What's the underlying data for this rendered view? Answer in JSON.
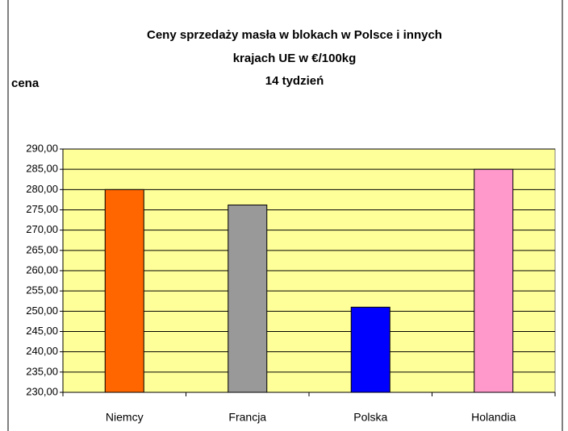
{
  "chart_data": {
    "type": "bar",
    "title": [
      "Ceny sprzedaży masła w blokach w Polsce i  innych",
      "krajach UE w €/100kg",
      "14 tydzień"
    ],
    "y_label": "cena",
    "categories": [
      "Niemcy",
      "Francja",
      "Polska",
      "Holandia"
    ],
    "values": [
      280,
      276.2,
      251,
      285
    ],
    "colors": [
      "#ff6600",
      "#999999",
      "#0000ff",
      "#ff99cc"
    ],
    "ylim": [
      230,
      290
    ],
    "yticks": [
      {
        "value": 230,
        "label": "230,00"
      },
      {
        "value": 235,
        "label": "235,00"
      },
      {
        "value": 240,
        "label": "240,00"
      },
      {
        "value": 245,
        "label": "245,00"
      },
      {
        "value": 250,
        "label": "250,00"
      },
      {
        "value": 255,
        "label": "255,00"
      },
      {
        "value": 260,
        "label": "260,00"
      },
      {
        "value": 265,
        "label": "265,00"
      },
      {
        "value": 270,
        "label": "270,00"
      },
      {
        "value": 275,
        "label": "275,00"
      },
      {
        "value": 280,
        "label": "280,00"
      },
      {
        "value": 285,
        "label": "285,00"
      },
      {
        "value": 290,
        "label": "290,00"
      }
    ],
    "grid": true,
    "plot_background": "#ffff99"
  }
}
